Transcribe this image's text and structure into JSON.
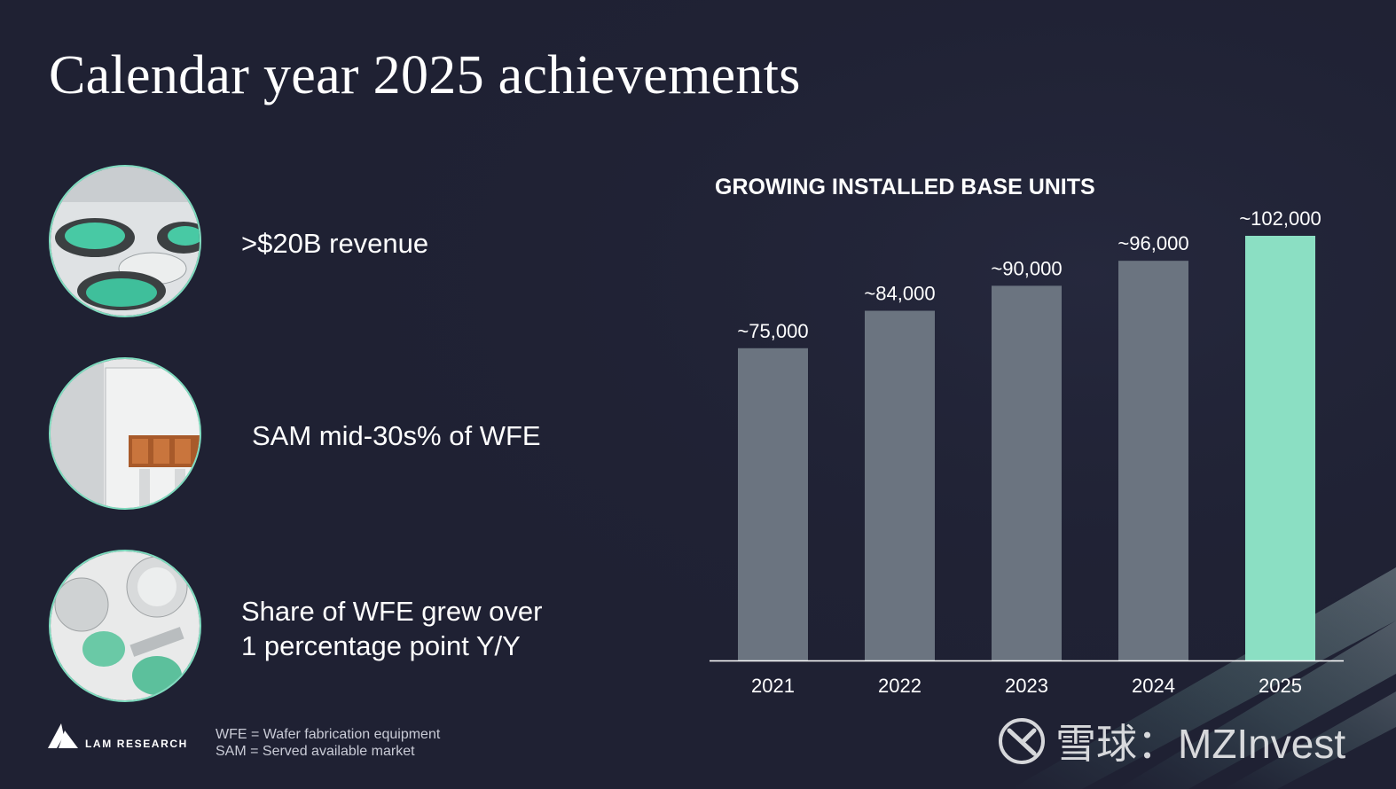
{
  "slide": {
    "title": "Calendar year 2025 achievements"
  },
  "achievements": [
    {
      "text": ">$20B revenue",
      "image": "wafer-chambers-photo"
    },
    {
      "text": "SAM mid-30s% of WFE",
      "image": "tool-cabinet-photo"
    },
    {
      "line1": "Share of WFE grew over",
      "line2": "1 percentage point Y/Y",
      "image": "wafer-handling-photo"
    }
  ],
  "chart_data": {
    "type": "bar",
    "title": "GROWING INSTALLED BASE UNITS",
    "categories": [
      "2021",
      "2022",
      "2023",
      "2024",
      "2025"
    ],
    "values": [
      75000,
      84000,
      90000,
      96000,
      102000
    ],
    "data_labels": [
      "~75,000",
      "~84,000",
      "~90,000",
      "~96,000",
      "~102,000"
    ],
    "ylim": [
      0,
      102000
    ],
    "grid": false,
    "highlight_index": 4,
    "colors": {
      "bar": "#6b7480",
      "highlight": "#8bdfc3",
      "axis": "#ffffff"
    }
  },
  "footer": {
    "brand": "LAM RESEARCH",
    "notes": [
      "WFE = Wafer fabrication equipment",
      "SAM = Served available market"
    ],
    "watermark": "雪球：MZInvest"
  }
}
